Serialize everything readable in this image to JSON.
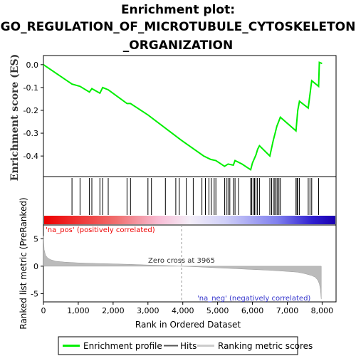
{
  "chart_data": {
    "type": "line",
    "title_lines": [
      "Enrichment plot:",
      "GO_REGULATION_OF_MICROTUBULE_CYTOSKELETON",
      "_ORGANIZATION"
    ],
    "es_panel": {
      "ylabel": "Enrichment score (ES)",
      "ylim": [
        -0.49,
        0.04
      ],
      "yticks": [
        0.0,
        -0.1,
        -0.2,
        -0.3,
        -0.4
      ],
      "ytick_labels": [
        "0.0",
        "-0.1",
        "-0.2",
        "-0.3",
        "-0.4"
      ],
      "series": [
        {
          "name": "Enrichment profile",
          "color": "#00ee00",
          "x": [
            0,
            820,
            1050,
            1320,
            1390,
            1620,
            1700,
            1860,
            2400,
            2500,
            3000,
            3950,
            4600,
            4800,
            4950,
            5200,
            5300,
            5450,
            5500,
            5700,
            5950,
            6000,
            6100,
            6150,
            6200,
            6500,
            6600,
            6650,
            6700,
            6750,
            6800,
            7250,
            7300,
            7350,
            7600,
            7700,
            7900,
            7920,
            8000
          ],
          "y": [
            0.0,
            -0.085,
            -0.095,
            -0.12,
            -0.105,
            -0.125,
            -0.1,
            -0.11,
            -0.17,
            -0.17,
            -0.22,
            -0.33,
            -0.4,
            -0.415,
            -0.42,
            -0.445,
            -0.435,
            -0.44,
            -0.42,
            -0.435,
            -0.46,
            -0.43,
            -0.395,
            -0.37,
            -0.355,
            -0.4,
            -0.33,
            -0.3,
            -0.27,
            -0.25,
            -0.23,
            -0.29,
            -0.2,
            -0.16,
            -0.19,
            -0.07,
            -0.095,
            0.01,
            0.005
          ]
        }
      ]
    },
    "hits": {
      "name": "Hits",
      "color": "#000000",
      "positions": [
        820,
        1050,
        1320,
        1390,
        1620,
        1700,
        1860,
        2400,
        2500,
        3000,
        3100,
        3500,
        3800,
        3900,
        4100,
        4300,
        4550,
        4650,
        4750,
        4820,
        4900,
        4950,
        5200,
        5250,
        5300,
        5350,
        5450,
        5500,
        5600,
        5950,
        5980,
        6020,
        6060,
        6100,
        6140,
        6200,
        6500,
        6550,
        6600,
        6640,
        6680,
        6720,
        6760,
        6800,
        7250,
        7280,
        7300,
        7350,
        7600,
        7650,
        7700,
        7900
      ]
    },
    "rank_panel": {
      "ylabel": "Ranked list metric (PreRanked)",
      "xlabel": "Rank in Ordered Dataset",
      "xlim": [
        0,
        8400
      ],
      "ylim": [
        -6.5,
        7.5
      ],
      "xticks": [
        0,
        1000,
        2000,
        3000,
        4000,
        5000,
        6000,
        7000,
        8000
      ],
      "xtick_labels": [
        "0",
        "1,000",
        "2,000",
        "3,000",
        "4,000",
        "5,000",
        "6,000",
        "7,000",
        "8,000"
      ],
      "yticks": [
        5,
        0,
        -5
      ],
      "ytick_labels": [
        "5",
        "0",
        "-5"
      ],
      "zero_cross": 3965,
      "zero_cross_label": "Zero cross at 3965",
      "pos_label": "'na_pos' (positively correlated)",
      "neg_label": "'na_neg' (negatively correlated)",
      "series": [
        {
          "name": "Ranking metric scores",
          "color": "#bbbbbb",
          "x": [
            0,
            20,
            60,
            120,
            200,
            350,
            600,
            1000,
            1500,
            2000,
            2500,
            3000,
            3500,
            3965,
            4500,
            5000,
            5500,
            6000,
            6500,
            7000,
            7300,
            7500,
            7700,
            7800,
            7870,
            7920,
            7950,
            7975
          ],
          "y": [
            5.5,
            3.0,
            2.0,
            1.5,
            1.2,
            0.9,
            0.75,
            0.6,
            0.5,
            0.42,
            0.33,
            0.22,
            0.12,
            0.0,
            -0.15,
            -0.3,
            -0.45,
            -0.6,
            -0.75,
            -0.95,
            -1.1,
            -1.35,
            -1.7,
            -2.0,
            -2.5,
            -3.2,
            -4.2,
            -6.0
          ]
        }
      ]
    },
    "legend": {
      "placement": "bottom",
      "items": [
        "Enrichment profile",
        "Hits",
        "Ranking metric scores"
      ]
    }
  }
}
